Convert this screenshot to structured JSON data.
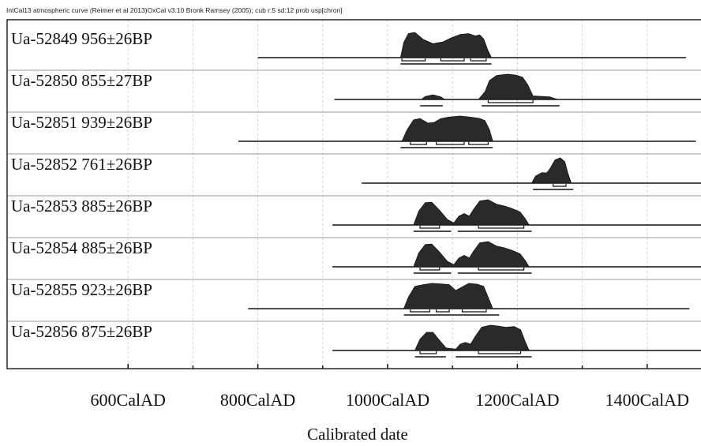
{
  "header": "IntCal13 atmospheric curve (Reimer et al 2013)OxCal v3.10 Bronk Ramsey (2005); cub r:5 sd:12 prob usp[chron]",
  "chart_data": {
    "type": "area",
    "title": "",
    "xlabel": "Calibrated date",
    "ylabel": "",
    "xlim": [
      500,
      1600
    ],
    "x_ticks": [
      600,
      800,
      1000,
      1200,
      1400
    ],
    "x_tick_labels": [
      "600CalAD",
      "800CalAD",
      "1000CalAD",
      "1200CalAD",
      "1400CalAD"
    ],
    "grid": true,
    "legend": "none",
    "samples": [
      {
        "label": "Ua-52849  956±26BP",
        "range": [
          800,
          1460
        ],
        "density": [
          [
            1020,
            0
          ],
          [
            1025,
            0.6
          ],
          [
            1032,
            0.95
          ],
          [
            1042,
            1.0
          ],
          [
            1055,
            0.72
          ],
          [
            1070,
            0.55
          ],
          [
            1085,
            0.62
          ],
          [
            1098,
            0.78
          ],
          [
            1112,
            0.92
          ],
          [
            1125,
            0.95
          ],
          [
            1135,
            0.86
          ],
          [
            1142,
            0.9
          ],
          [
            1148,
            0.74
          ],
          [
            1154,
            0.32
          ],
          [
            1160,
            0
          ]
        ],
        "hpd68": [
          [
            1022,
            1058
          ],
          [
            1082,
            1118
          ],
          [
            1128,
            1152
          ]
        ],
        "hpd95": [
          [
            1020,
            1160
          ]
        ]
      },
      {
        "label": "Ua-52850  855±27BP",
        "range": [
          918,
          1505
        ],
        "density": [
          [
            1052,
            0
          ],
          [
            1058,
            0.12
          ],
          [
            1070,
            0.18
          ],
          [
            1082,
            0.1
          ],
          [
            1088,
            0
          ],
          [
            1140,
            0
          ],
          [
            1150,
            0.3
          ],
          [
            1157,
            0.75
          ],
          [
            1168,
            0.95
          ],
          [
            1185,
            1.0
          ],
          [
            1198,
            0.96
          ],
          [
            1208,
            0.88
          ],
          [
            1216,
            0.58
          ],
          [
            1224,
            0.14
          ],
          [
            1250,
            0.1
          ],
          [
            1262,
            0
          ]
        ],
        "hpd68": [
          [
            1155,
            1224
          ]
        ],
        "hpd95": [
          [
            1050,
            1085
          ],
          [
            1145,
            1265
          ]
        ]
      },
      {
        "label": "Ua-52851  939±26BP",
        "range": [
          770,
          1475
        ],
        "density": [
          [
            1022,
            0
          ],
          [
            1030,
            0.45
          ],
          [
            1040,
            0.85
          ],
          [
            1050,
            0.9
          ],
          [
            1062,
            0.72
          ],
          [
            1072,
            0.75
          ],
          [
            1082,
            0.9
          ],
          [
            1095,
            0.96
          ],
          [
            1112,
            1.0
          ],
          [
            1130,
            0.95
          ],
          [
            1142,
            0.9
          ],
          [
            1150,
            0.82
          ],
          [
            1157,
            0.45
          ],
          [
            1162,
            0
          ]
        ],
        "hpd68": [
          [
            1035,
            1060
          ],
          [
            1075,
            1118
          ],
          [
            1125,
            1155
          ]
        ],
        "hpd95": [
          [
            1020,
            1162
          ]
        ]
      },
      {
        "label": "Ua-52852  761±26BP",
        "range": [
          960,
          1600
        ],
        "density": [
          [
            1222,
            0
          ],
          [
            1228,
            0.28
          ],
          [
            1238,
            0.42
          ],
          [
            1245,
            0.4
          ],
          [
            1250,
            0.56
          ],
          [
            1258,
            0.92
          ],
          [
            1266,
            1.0
          ],
          [
            1273,
            0.85
          ],
          [
            1278,
            0.38
          ],
          [
            1283,
            0
          ]
        ],
        "hpd68": [
          [
            1255,
            1275
          ]
        ],
        "hpd95": [
          [
            1224,
            1286
          ]
        ]
      },
      {
        "label": "Ua-52853  885±26BP",
        "range": [
          915,
          1510
        ],
        "density": [
          [
            1040,
            0
          ],
          [
            1048,
            0.55
          ],
          [
            1058,
            0.88
          ],
          [
            1068,
            0.9
          ],
          [
            1080,
            0.58
          ],
          [
            1092,
            0.22
          ],
          [
            1102,
            0.08
          ],
          [
            1110,
            0.35
          ],
          [
            1118,
            0.45
          ],
          [
            1126,
            0.35
          ],
          [
            1132,
            0.6
          ],
          [
            1142,
            0.95
          ],
          [
            1155,
            1.0
          ],
          [
            1168,
            0.82
          ],
          [
            1180,
            0.75
          ],
          [
            1192,
            0.65
          ],
          [
            1204,
            0.52
          ],
          [
            1212,
            0.25
          ],
          [
            1218,
            0
          ]
        ],
        "hpd68": [
          [
            1050,
            1080
          ],
          [
            1140,
            1210
          ]
        ],
        "hpd95": [
          [
            1040,
            1098
          ],
          [
            1108,
            1222
          ]
        ]
      },
      {
        "label": "Ua-52854  885±26BP",
        "range": [
          915,
          1510
        ],
        "density": [
          [
            1040,
            0
          ],
          [
            1048,
            0.55
          ],
          [
            1058,
            0.88
          ],
          [
            1068,
            0.9
          ],
          [
            1080,
            0.58
          ],
          [
            1092,
            0.22
          ],
          [
            1102,
            0.08
          ],
          [
            1110,
            0.35
          ],
          [
            1118,
            0.45
          ],
          [
            1126,
            0.35
          ],
          [
            1132,
            0.6
          ],
          [
            1142,
            0.95
          ],
          [
            1155,
            1.0
          ],
          [
            1168,
            0.82
          ],
          [
            1180,
            0.75
          ],
          [
            1192,
            0.65
          ],
          [
            1204,
            0.52
          ],
          [
            1212,
            0.25
          ],
          [
            1218,
            0
          ]
        ],
        "hpd68": [
          [
            1050,
            1080
          ],
          [
            1140,
            1210
          ]
        ],
        "hpd95": [
          [
            1040,
            1098
          ],
          [
            1108,
            1222
          ]
        ]
      },
      {
        "label": "Ua-52855  923±26BP",
        "range": [
          785,
          1465
        ],
        "density": [
          [
            1025,
            0
          ],
          [
            1032,
            0.45
          ],
          [
            1042,
            0.88
          ],
          [
            1055,
            0.95
          ],
          [
            1068,
            1.0
          ],
          [
            1082,
            0.98
          ],
          [
            1095,
            0.95
          ],
          [
            1105,
            0.72
          ],
          [
            1112,
            0.82
          ],
          [
            1125,
            1.0
          ],
          [
            1138,
            0.97
          ],
          [
            1148,
            0.88
          ],
          [
            1155,
            0.45
          ],
          [
            1162,
            0
          ]
        ],
        "hpd68": [
          [
            1035,
            1065
          ],
          [
            1075,
            1095
          ],
          [
            1115,
            1152
          ]
        ],
        "hpd95": [
          [
            1025,
            1172
          ]
        ]
      },
      {
        "label": "Ua-52856  875±26BP",
        "range": [
          915,
          1510
        ],
        "density": [
          [
            1042,
            0
          ],
          [
            1050,
            0.45
          ],
          [
            1060,
            0.72
          ],
          [
            1070,
            0.72
          ],
          [
            1080,
            0.4
          ],
          [
            1090,
            0.1
          ],
          [
            1105,
            0.05
          ],
          [
            1112,
            0.25
          ],
          [
            1120,
            0.32
          ],
          [
            1128,
            0.25
          ],
          [
            1135,
            0.55
          ],
          [
            1145,
            0.92
          ],
          [
            1158,
            1.0
          ],
          [
            1170,
            0.97
          ],
          [
            1182,
            0.92
          ],
          [
            1195,
            0.95
          ],
          [
            1205,
            0.82
          ],
          [
            1212,
            0.35
          ],
          [
            1218,
            0
          ]
        ],
        "hpd68": [
          [
            1050,
            1075
          ],
          [
            1140,
            1205
          ]
        ],
        "hpd95": [
          [
            1042,
            1090
          ],
          [
            1105,
            1222
          ]
        ]
      }
    ]
  }
}
